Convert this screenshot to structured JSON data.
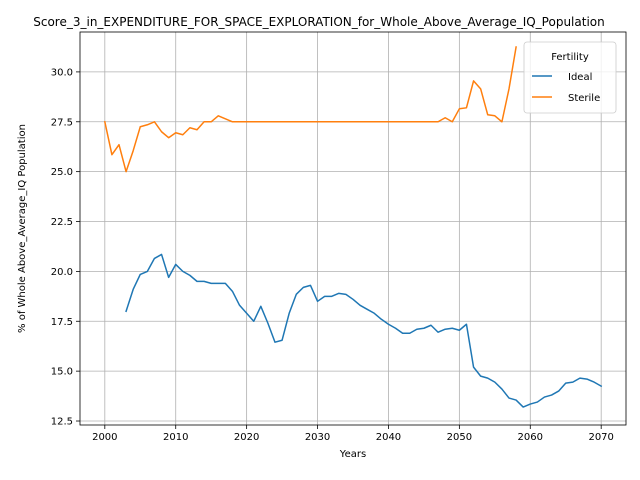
{
  "chart_data": {
    "type": "line",
    "title": "Score_3_in_EXPENDITURE_FOR_SPACE_EXPLORATION_for_Whole_Above_Average_IQ_Population",
    "xlabel": "Years",
    "ylabel": "% of Whole Above_Average_IQ Population",
    "xlim": [
      1996.5,
      2073.5
    ],
    "ylim": [
      12.3,
      32.0
    ],
    "xticks": [
      2000,
      2010,
      2020,
      2030,
      2040,
      2050,
      2060,
      2070
    ],
    "yticks": [
      12.5,
      15.0,
      17.5,
      20.0,
      22.5,
      25.0,
      27.5,
      30.0
    ],
    "ytick_labels": [
      "12.5",
      "15.0",
      "17.5",
      "20.0",
      "22.5",
      "25.0",
      "27.5",
      "30.0"
    ],
    "grid": true,
    "legend": {
      "title": "Fertility",
      "placement": "top-right"
    },
    "series": [
      {
        "name": "Ideal",
        "color": "#1f77b4",
        "x": [
          2003,
          2004,
          2005,
          2006,
          2007,
          2008,
          2009,
          2010,
          2011,
          2012,
          2013,
          2014,
          2015,
          2016,
          2017,
          2018,
          2019,
          2020,
          2021,
          2022,
          2023,
          2024,
          2025,
          2026,
          2027,
          2028,
          2029,
          2030,
          2031,
          2032,
          2033,
          2034,
          2035,
          2036,
          2037,
          2038,
          2039,
          2040,
          2041,
          2042,
          2043,
          2044,
          2045,
          2046,
          2047,
          2048,
          2049,
          2050,
          2051,
          2052,
          2053,
          2054,
          2055,
          2056,
          2057,
          2058,
          2059,
          2060,
          2061,
          2062,
          2063,
          2064,
          2065,
          2066,
          2067,
          2068,
          2069,
          2070
        ],
        "values": [
          18.0,
          19.1,
          19.85,
          20.0,
          20.65,
          20.85,
          19.7,
          20.35,
          20.0,
          19.8,
          19.5,
          19.5,
          19.4,
          19.4,
          19.4,
          19.0,
          18.3,
          17.9,
          17.5,
          18.25,
          17.4,
          16.45,
          16.55,
          17.9,
          18.85,
          19.2,
          19.3,
          18.5,
          18.75,
          18.75,
          18.9,
          18.85,
          18.6,
          18.3,
          18.1,
          17.9,
          17.6,
          17.35,
          17.15,
          16.9,
          16.9,
          17.1,
          17.15,
          17.3,
          16.95,
          17.1,
          17.15,
          17.05,
          17.35,
          15.2,
          14.75,
          14.65,
          14.45,
          14.1,
          13.65,
          13.55,
          13.2,
          13.35,
          13.45,
          13.7,
          13.8,
          14.0,
          14.4,
          14.45,
          14.65,
          14.6,
          14.45,
          14.25
        ]
      },
      {
        "name": "Sterile",
        "color": "#ff7f0e",
        "x": [
          2000,
          2001,
          2002,
          2003,
          2004,
          2005,
          2006,
          2007,
          2008,
          2009,
          2010,
          2011,
          2012,
          2013,
          2014,
          2015,
          2016,
          2017,
          2018,
          2019,
          2020,
          2021,
          2022,
          2023,
          2024,
          2025,
          2026,
          2027,
          2028,
          2029,
          2030,
          2031,
          2032,
          2033,
          2034,
          2035,
          2036,
          2037,
          2038,
          2039,
          2040,
          2041,
          2042,
          2043,
          2044,
          2045,
          2046,
          2047,
          2048,
          2049,
          2050,
          2051,
          2052,
          2053,
          2054,
          2055,
          2056,
          2057,
          2058
        ],
        "values": [
          27.5,
          25.85,
          26.35,
          25.0,
          26.05,
          27.25,
          27.35,
          27.5,
          27.0,
          26.7,
          26.95,
          26.85,
          27.2,
          27.1,
          27.5,
          27.5,
          27.8,
          27.65,
          27.5,
          27.5,
          27.5,
          27.5,
          27.5,
          27.5,
          27.5,
          27.5,
          27.5,
          27.5,
          27.5,
          27.5,
          27.5,
          27.5,
          27.5,
          27.5,
          27.5,
          27.5,
          27.5,
          27.5,
          27.5,
          27.5,
          27.5,
          27.5,
          27.5,
          27.5,
          27.5,
          27.5,
          27.5,
          27.5,
          27.7,
          27.5,
          28.15,
          28.2,
          29.55,
          29.15,
          27.85,
          27.8,
          27.5,
          29.15,
          31.25
        ]
      }
    ]
  }
}
